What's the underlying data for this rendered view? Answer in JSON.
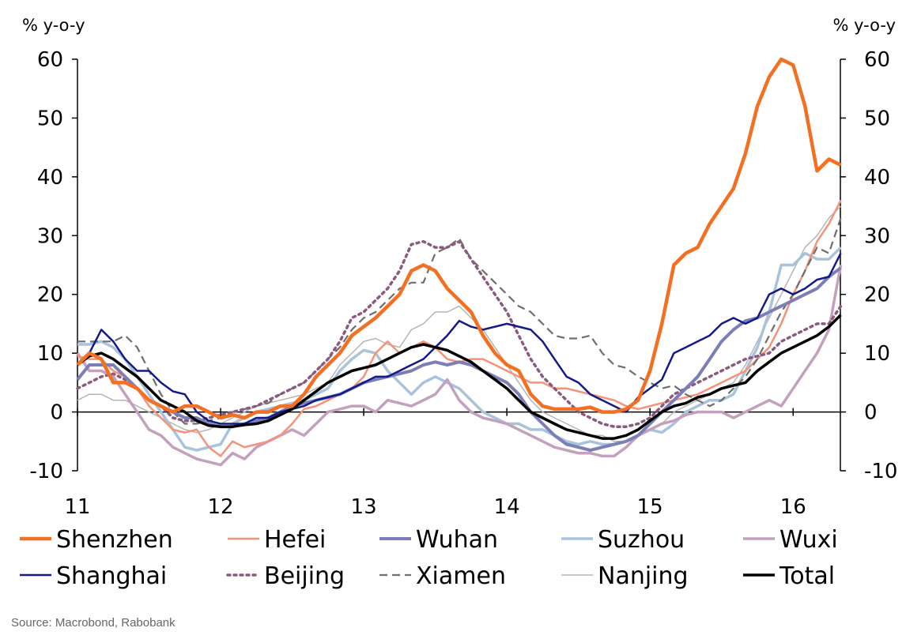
{
  "chart_data": {
    "type": "line",
    "y_unit_left": "% y-o-y",
    "y_unit_right": "% y-o-y",
    "ylim": [
      -10,
      60
    ],
    "y_ticks": [
      -10,
      0,
      10,
      20,
      30,
      40,
      50,
      60
    ],
    "y_tick_labels": [
      "-10",
      "0",
      "10",
      "20",
      "30",
      "40",
      "50",
      "60"
    ],
    "xlim": [
      2011.0,
      2016.33
    ],
    "x_ticks": [
      2011,
      2012,
      2013,
      2014,
      2015,
      2016
    ],
    "x_tick_labels": [
      "11",
      "12",
      "13",
      "14",
      "15",
      "16"
    ],
    "x": [
      2011.0,
      2011.083,
      2011.167,
      2011.25,
      2011.333,
      2011.417,
      2011.5,
      2011.583,
      2011.667,
      2011.75,
      2011.833,
      2011.917,
      2012.0,
      2012.083,
      2012.167,
      2012.25,
      2012.333,
      2012.417,
      2012.5,
      2012.583,
      2012.667,
      2012.75,
      2012.833,
      2012.917,
      2013.0,
      2013.083,
      2013.167,
      2013.25,
      2013.333,
      2013.417,
      2013.5,
      2013.583,
      2013.667,
      2013.75,
      2013.833,
      2013.917,
      2014.0,
      2014.083,
      2014.167,
      2014.25,
      2014.333,
      2014.417,
      2014.5,
      2014.583,
      2014.667,
      2014.75,
      2014.833,
      2014.917,
      2015.0,
      2015.083,
      2015.167,
      2015.25,
      2015.333,
      2015.417,
      2015.5,
      2015.583,
      2015.667,
      2015.75,
      2015.833,
      2015.917,
      2016.0,
      2016.083,
      2016.167,
      2016.25,
      2016.333
    ],
    "series": [
      {
        "name": "Shenzhen",
        "color": "#F36F21",
        "width": 4.5,
        "dash": "",
        "values": [
          8,
          10,
          9,
          5,
          5,
          4,
          2,
          1,
          0,
          1,
          1,
          0,
          -1,
          -0.5,
          -1,
          0,
          0,
          1,
          1,
          3,
          6,
          8,
          10,
          13,
          14.5,
          16,
          18,
          20,
          24,
          25,
          24,
          21,
          19,
          17,
          13,
          10,
          8,
          7,
          3,
          1,
          0.5,
          0.5,
          0.5,
          0.8,
          0,
          0,
          0.5,
          2,
          7,
          15,
          25,
          27,
          28,
          32,
          35,
          38,
          44,
          52,
          57,
          60,
          59,
          52,
          41,
          43,
          42
        ]
      },
      {
        "name": "Hefei",
        "color": "#F5937A",
        "width": 2.5,
        "dash": "",
        "values": [
          9.5,
          9,
          9,
          7,
          6,
          4,
          1,
          -1,
          -3,
          -3.5,
          -3,
          -6,
          -7.5,
          -5,
          -6,
          -5.5,
          -5,
          -4,
          -2,
          0.5,
          1,
          2,
          3,
          4,
          6,
          10,
          12,
          10,
          11,
          12,
          11,
          9,
          8.5,
          9,
          9,
          8,
          7,
          6,
          5,
          5,
          4,
          4,
          3.5,
          3,
          2.5,
          2,
          1,
          0.5,
          1,
          1.5,
          2,
          2.5,
          3,
          4,
          5,
          6,
          7,
          9,
          11,
          15,
          20,
          24,
          29,
          32,
          36
        ]
      },
      {
        "name": "Wuhan",
        "color": "#7B7FB5",
        "width": 4,
        "dash": "",
        "values": [
          5.5,
          8,
          8,
          8,
          6,
          4,
          2,
          1,
          0,
          -1,
          -1,
          -2,
          -2.5,
          -2.5,
          -2,
          -1.5,
          -1,
          0,
          1,
          1.5,
          2,
          2.5,
          3,
          4,
          5,
          5.5,
          6,
          6.5,
          7,
          8,
          8.5,
          8,
          8.5,
          8,
          7,
          6,
          5,
          3,
          0,
          -2,
          -4,
          -5.5,
          -6,
          -6.5,
          -6,
          -5.5,
          -5,
          -4,
          -2,
          0,
          2,
          4,
          6,
          9,
          12,
          14,
          15.5,
          16,
          17,
          18,
          19,
          20,
          21,
          23,
          24.5
        ]
      },
      {
        "name": "Suzhou",
        "color": "#A9C3DC",
        "width": 3.5,
        "dash": "",
        "values": [
          11.5,
          11.5,
          12,
          11,
          9,
          6,
          3,
          0,
          -3,
          -6,
          -6.5,
          -6,
          -5.5,
          -2,
          -1,
          0,
          0.5,
          1,
          1.5,
          2,
          3,
          4,
          7,
          9,
          10.5,
          10,
          7,
          5,
          3,
          5,
          6,
          5,
          4,
          2,
          0,
          -1,
          -2,
          -2,
          -3,
          -3,
          -4,
          -5,
          -5.5,
          -5,
          -5.5,
          -5.5,
          -5,
          -4,
          -3,
          -3.5,
          -2,
          0,
          1,
          2,
          2,
          3,
          7,
          11,
          17,
          25,
          25,
          27,
          26,
          26,
          28
        ]
      },
      {
        "name": "Wuxi",
        "color": "#C3A1BE",
        "width": 3.5,
        "dash": "",
        "values": [
          10,
          7,
          7,
          6,
          3,
          0,
          -3,
          -4,
          -6,
          -7,
          -8,
          -8.5,
          -9,
          -7,
          -8,
          -6,
          -5,
          -4,
          -3,
          -4,
          -2,
          0,
          0.5,
          1,
          1,
          0,
          2,
          1.5,
          1,
          2,
          3,
          5.5,
          2,
          0,
          -1,
          -1.5,
          -2,
          -3,
          -4,
          -5,
          -6,
          -6.5,
          -7,
          -7,
          -7.5,
          -7.5,
          -6,
          -4,
          -3,
          -2,
          -1.5,
          -0.5,
          0,
          0,
          0,
          -1,
          0,
          1,
          2,
          1,
          4,
          7,
          10,
          14,
          25
        ]
      },
      {
        "name": "Shanghai",
        "color": "#141A8A",
        "width": 2.5,
        "dash": "",
        "values": [
          8,
          10,
          14,
          12,
          9,
          7,
          7,
          5,
          3.5,
          3,
          0,
          -1.5,
          -2,
          -2,
          -2,
          -1,
          -1,
          0,
          0.5,
          1,
          2,
          2.5,
          3,
          4,
          5,
          6,
          6,
          7,
          8,
          9,
          11,
          13,
          15.5,
          14.5,
          14,
          14.5,
          15,
          14.5,
          14,
          12,
          9,
          6,
          5,
          3,
          2,
          1,
          0,
          2.5,
          4,
          5.5,
          10,
          11,
          12,
          13,
          15,
          16,
          15,
          16,
          20,
          21,
          20,
          21,
          22.5,
          23,
          27
        ]
      },
      {
        "name": "Beijing",
        "color": "#8B5A80",
        "width": 3.5,
        "dash": "3 5",
        "values": [
          4,
          5,
          6,
          6.5,
          5.5,
          4,
          2,
          1,
          -1,
          -1.5,
          -1.5,
          -1,
          -0.5,
          0,
          0.5,
          1,
          2,
          3,
          4,
          5,
          7,
          9,
          12,
          16,
          17,
          19,
          21,
          24,
          28.5,
          29,
          28,
          28,
          29,
          26,
          23,
          20,
          17,
          13,
          9,
          6,
          4,
          2,
          0,
          -1,
          -2,
          -2.5,
          -2.5,
          -2,
          -1,
          1,
          3,
          4,
          5,
          6,
          7,
          8,
          9,
          9.5,
          10,
          12,
          13,
          14,
          15,
          15,
          18
        ]
      },
      {
        "name": "Xiamen",
        "color": "#6E6E6E",
        "width": 2.2,
        "dash": "10 6",
        "values": [
          12,
          12,
          12,
          12,
          13,
          11,
          7,
          3,
          0,
          -2,
          -2,
          -1.5,
          -1,
          0,
          0.5,
          1,
          1.5,
          3,
          4,
          5,
          7,
          9,
          11,
          14,
          16,
          17,
          19,
          21,
          22,
          22,
          27,
          28,
          29.5,
          26,
          24,
          22,
          20,
          18,
          17,
          15,
          13,
          12.5,
          12.5,
          13,
          10,
          8,
          7.5,
          6,
          5,
          4,
          4.5,
          3,
          2,
          1,
          2,
          4,
          6,
          9,
          13,
          17,
          20,
          24,
          28,
          27,
          33
        ]
      },
      {
        "name": "Nanjing",
        "color": "#B5B5B5",
        "width": 1.5,
        "dash": "",
        "values": [
          2,
          3,
          3,
          2,
          2,
          1,
          0,
          -1,
          -2,
          -3,
          -3.5,
          -3,
          -2,
          -1,
          0,
          1,
          1.5,
          2,
          2.5,
          3,
          4,
          5,
          8,
          10,
          12,
          12.5,
          11.5,
          11,
          14,
          15,
          17,
          17,
          18,
          16,
          14,
          11,
          8,
          5,
          2,
          0,
          -1,
          -2,
          -3,
          -4,
          -4,
          -5,
          -5,
          -4,
          -3,
          -2,
          0,
          1,
          2,
          3,
          4,
          5,
          8,
          12,
          16,
          20,
          24,
          28,
          30,
          33,
          35
        ]
      },
      {
        "name": "Total",
        "color": "#000000",
        "width": 3.5,
        "dash": "",
        "values": [
          8,
          9.5,
          10,
          9,
          7.5,
          6,
          4,
          2,
          1,
          0,
          -1.5,
          -2.3,
          -2.5,
          -2.5,
          -2.2,
          -2,
          -1.5,
          -0.5,
          0.5,
          2,
          3.5,
          5,
          6,
          7,
          7.5,
          8,
          9,
          10,
          11,
          11.5,
          11,
          10.5,
          9.5,
          8.5,
          7,
          5.5,
          4,
          2,
          0,
          -1,
          -2,
          -3,
          -3.5,
          -4,
          -4.5,
          -4.5,
          -4,
          -3,
          -1.5,
          0,
          1,
          1.5,
          2.5,
          3,
          4,
          4.5,
          5,
          7,
          8.5,
          10,
          11,
          12,
          13,
          14.5,
          16.5
        ]
      }
    ],
    "legend": [
      [
        "Shenzhen",
        "Hefei",
        "Wuhan",
        "Suzhou",
        "Wuxi"
      ],
      [
        "Shanghai",
        "Beijing",
        "Xiamen",
        "Nanjing",
        "Total"
      ]
    ],
    "grid": false,
    "source": "Source: Macrobond, Rabobank"
  }
}
